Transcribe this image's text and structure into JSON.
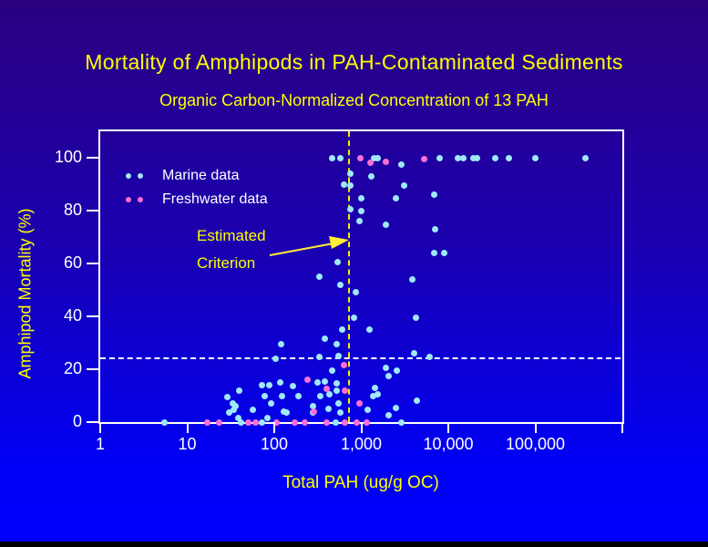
{
  "chart_data": {
    "type": "scatter",
    "title": "Mortality of Amphipods in PAH-Contaminated Sediments",
    "subtitle": "Organic Carbon-Normalized Concentration of 13 PAH",
    "xlabel": "Total PAH (ug/g OC)",
    "ylabel": "Amphipod Mortality (%)",
    "x_scale": "log",
    "x_range": [
      1,
      1000000
    ],
    "y_range": [
      0,
      110
    ],
    "grid": false,
    "legend_position": "upper-left-inside",
    "x_ticks": [
      {
        "value": 1,
        "label": "1"
      },
      {
        "value": 10,
        "label": "10"
      },
      {
        "value": 100,
        "label": "100"
      },
      {
        "value": 1000,
        "label": "1,000"
      },
      {
        "value": 10000,
        "label": "10,000"
      },
      {
        "value": 100000,
        "label": "100,000"
      },
      {
        "value": 1000000,
        "label": ""
      }
    ],
    "y_ticks": [
      0,
      20,
      40,
      60,
      80,
      100
    ],
    "series": [
      {
        "name": "Marine data",
        "color": "#9fe8f8",
        "points": [
          [
            5.5,
            0
          ],
          [
            41,
            0
          ],
          [
            72,
            0
          ],
          [
            505,
            0
          ],
          [
            2900,
            0
          ],
          [
            29,
            9.5
          ],
          [
            30,
            3.5
          ],
          [
            33,
            7
          ],
          [
            34,
            4.5
          ],
          [
            36,
            6
          ],
          [
            39,
            1.5
          ],
          [
            40,
            12
          ],
          [
            57,
            4.5
          ],
          [
            72,
            14
          ],
          [
            78,
            10
          ],
          [
            83,
            1.5
          ],
          [
            87,
            14
          ],
          [
            93,
            7
          ],
          [
            103,
            24
          ],
          [
            117,
            15
          ],
          [
            119,
            29.5
          ],
          [
            124,
            10
          ],
          [
            128,
            4
          ],
          [
            138,
            3.5
          ],
          [
            163,
            13.5
          ],
          [
            190,
            10
          ],
          [
            277,
            6
          ],
          [
            277,
            3.5
          ],
          [
            313,
            15
          ],
          [
            328,
            24.5
          ],
          [
            328,
            55
          ],
          [
            336,
            10
          ],
          [
            378,
            15.5
          ],
          [
            378,
            31.5
          ],
          [
            417,
            5
          ],
          [
            427,
            10.5
          ],
          [
            459,
            19.5
          ],
          [
            518,
            12
          ],
          [
            518,
            14.5
          ],
          [
            518,
            29.5
          ],
          [
            530,
            60.5
          ],
          [
            543,
            7
          ],
          [
            543,
            25
          ],
          [
            570,
            3.5
          ],
          [
            570,
            52
          ],
          [
            598,
            35
          ],
          [
            640,
            90
          ],
          [
            740,
            94
          ],
          [
            743,
            80.5
          ],
          [
            745,
            89.5
          ],
          [
            817,
            39.5
          ],
          [
            857,
            49
          ],
          [
            944,
            76
          ],
          [
            990,
            80
          ],
          [
            1010,
            84.5
          ],
          [
            1170,
            4.5
          ],
          [
            1230,
            35
          ],
          [
            1290,
            93
          ],
          [
            1360,
            10
          ],
          [
            1420,
            13
          ],
          [
            1550,
            10.5
          ],
          [
            1940,
            20.5
          ],
          [
            1940,
            74.5
          ],
          [
            2040,
            2.5
          ],
          [
            2040,
            17.5
          ],
          [
            2470,
            5.5
          ],
          [
            2470,
            84.5
          ],
          [
            2590,
            19.5
          ],
          [
            2920,
            97.5
          ],
          [
            3140,
            89.5
          ],
          [
            3900,
            54
          ],
          [
            4090,
            26
          ],
          [
            4300,
            39.5
          ],
          [
            4400,
            8
          ],
          [
            6150,
            24.5
          ],
          [
            6930,
            64
          ],
          [
            6930,
            86
          ],
          [
            7100,
            73
          ],
          [
            9030,
            64
          ],
          [
            460,
            100
          ],
          [
            580,
            100
          ],
          [
            1390,
            100
          ],
          [
            1560,
            100
          ],
          [
            8000,
            100
          ],
          [
            13000,
            100
          ],
          [
            15000,
            100
          ],
          [
            19500,
            100
          ],
          [
            21500,
            100
          ],
          [
            34700,
            100
          ],
          [
            49800,
            100
          ],
          [
            100000,
            100
          ],
          [
            375000,
            100
          ]
        ]
      },
      {
        "name": "Freshwater data",
        "color": "#f96fd4",
        "points": [
          [
            17,
            0
          ],
          [
            23,
            0
          ],
          [
            50,
            0
          ],
          [
            61,
            0
          ],
          [
            106,
            0
          ],
          [
            171,
            0
          ],
          [
            223,
            0
          ],
          [
            397,
            0
          ],
          [
            643,
            0
          ],
          [
            880,
            0
          ],
          [
            1150,
            0
          ],
          [
            240,
            16
          ],
          [
            283,
            4
          ],
          [
            397,
            12.5
          ],
          [
            627,
            21.5
          ],
          [
            643,
            12
          ],
          [
            944,
            7
          ],
          [
            967,
            100
          ],
          [
            1260,
            98
          ],
          [
            1940,
            98.5
          ],
          [
            5330,
            99.5
          ]
        ]
      }
    ],
    "reference_lines": [
      {
        "orientation": "vertical",
        "value": 720,
        "style": "dashed",
        "color": "#ffee00",
        "label": "Estimated Criterion"
      },
      {
        "orientation": "horizontal",
        "value": 24,
        "style": "dashed",
        "color": "#ffffff",
        "label": ""
      }
    ],
    "annotation": {
      "line1": "Estimated",
      "line2": "Criterion",
      "color": "#ffff00"
    }
  }
}
